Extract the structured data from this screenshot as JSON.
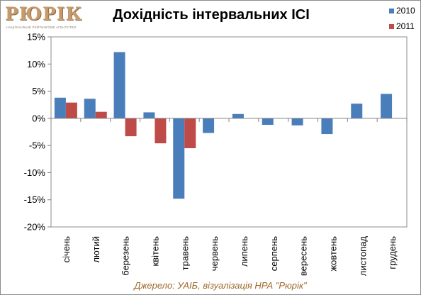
{
  "logo": {
    "text": "РЮРІК",
    "tagline": "НАЦІОНАЛЬНЕ РЕЙТИНГОВЕ АГЕНТСТВО"
  },
  "source_note": "Джерело: УАІБ, візуалізація НРА \"Рюрік\"",
  "colors": {
    "series_2010": "#4a7ebb",
    "series_2011": "#be4b48",
    "plot_border": "#8c8c8c",
    "source_text": "#a06a2e"
  },
  "chart_data": {
    "type": "bar",
    "title": "Дохідність інтервальних ІСІ",
    "xlabel": "",
    "ylabel": "",
    "categories": [
      "січень",
      "лютий",
      "березень",
      "квітень",
      "травень",
      "червень",
      "липень",
      "серпень",
      "вересень",
      "жовтень",
      "листопад",
      "грудень"
    ],
    "series": [
      {
        "name": "2010",
        "color": "#4a7ebb",
        "values": [
          3.8,
          3.6,
          12.2,
          1.1,
          -14.8,
          -2.7,
          0.8,
          -1.2,
          -1.3,
          -2.9,
          2.7,
          4.5
        ]
      },
      {
        "name": "2011",
        "color": "#be4b48",
        "values": [
          2.9,
          1.2,
          -3.3,
          -4.6,
          -5.5,
          null,
          null,
          null,
          null,
          null,
          null,
          null
        ]
      }
    ],
    "ylim": [
      -20,
      15
    ],
    "yticks": [
      15,
      10,
      5,
      0,
      -5,
      -10,
      -15,
      -20
    ],
    "ytick_labels": [
      "15%",
      "10%",
      "5%",
      "0%",
      "-5%",
      "-10%",
      "-15%",
      "-20%"
    ],
    "grid": false,
    "legend_position": "top-right"
  }
}
